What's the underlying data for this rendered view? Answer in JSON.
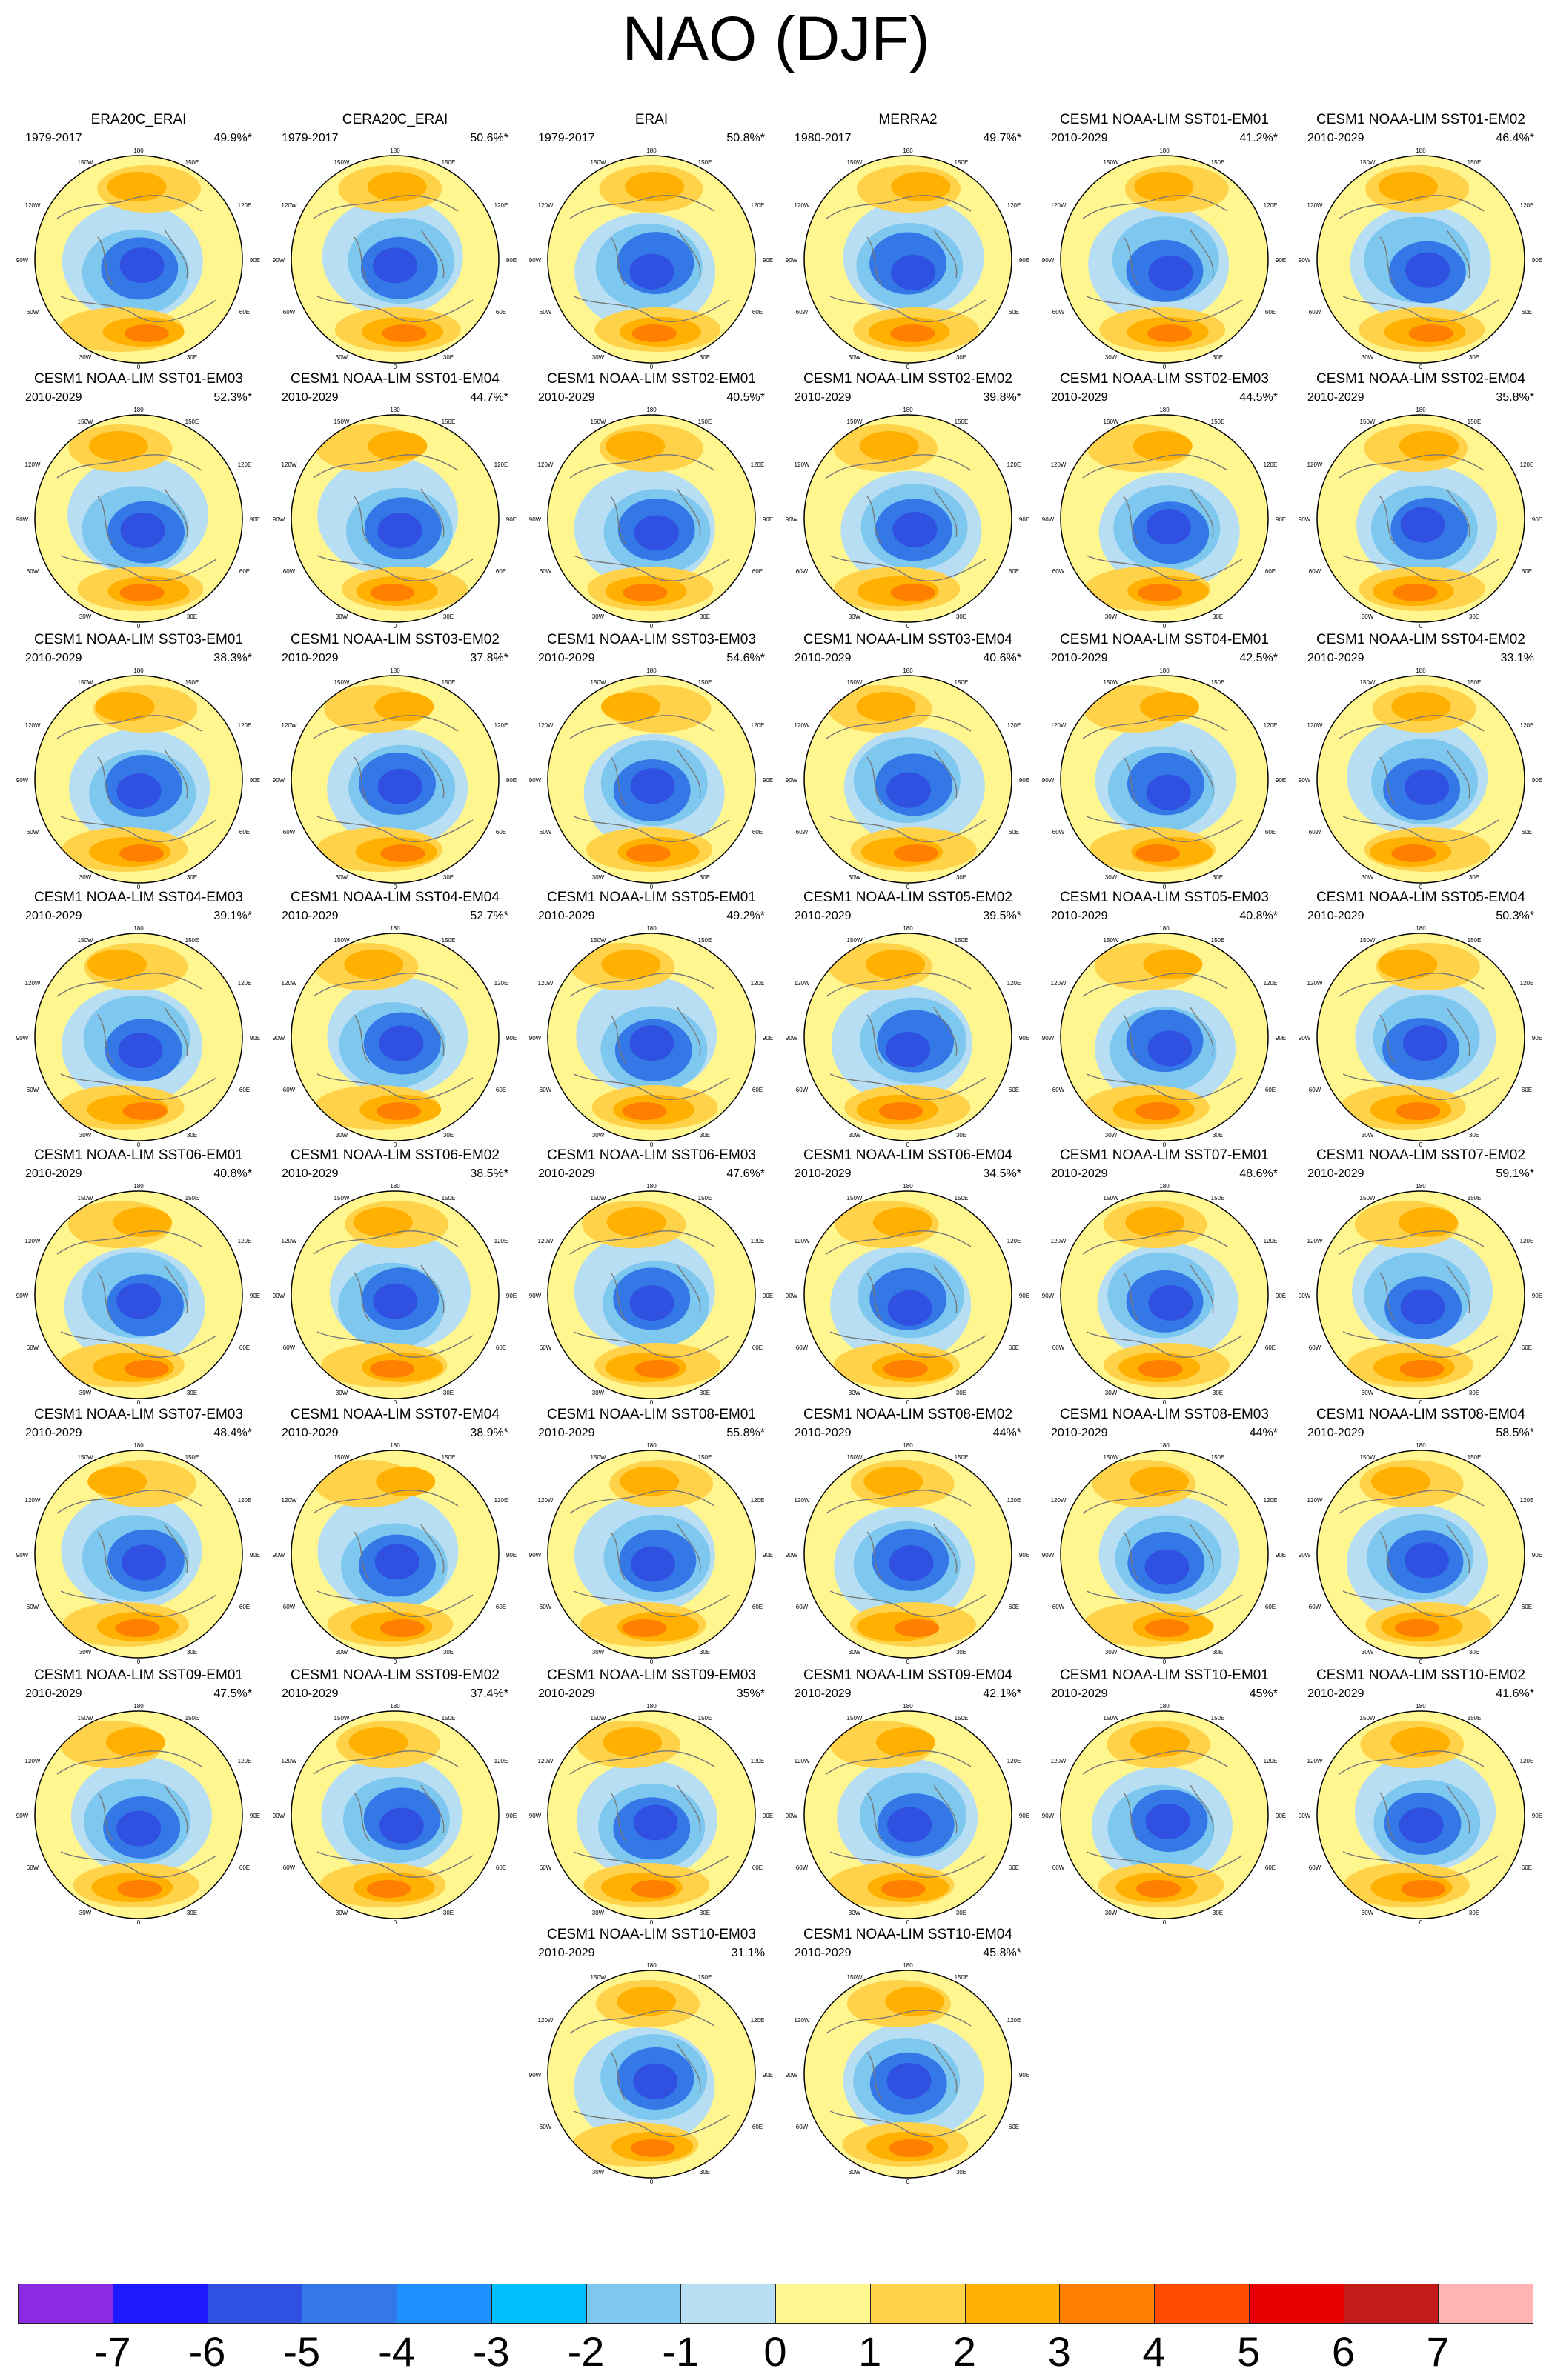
{
  "title": "NAO (DJF)",
  "panels": [
    {
      "title": "ERA20C_ERAI",
      "period": "1979-2017",
      "percent": "49.9%*"
    },
    {
      "title": "CERA20C_ERAI",
      "period": "1979-2017",
      "percent": "50.6%*"
    },
    {
      "title": "ERAI",
      "period": "1979-2017",
      "percent": "50.8%*"
    },
    {
      "title": "MERRA2",
      "period": "1980-2017",
      "percent": "49.7%*"
    },
    {
      "title": "CESM1 NOAA-LIM SST01-EM01",
      "period": "2010-2029",
      "percent": "41.2%*"
    },
    {
      "title": "CESM1 NOAA-LIM SST01-EM02",
      "period": "2010-2029",
      "percent": "46.4%*"
    },
    {
      "title": "CESM1 NOAA-LIM SST01-EM03",
      "period": "2010-2029",
      "percent": "52.3%*"
    },
    {
      "title": "CESM1 NOAA-LIM SST01-EM04",
      "period": "2010-2029",
      "percent": "44.7%*"
    },
    {
      "title": "CESM1 NOAA-LIM SST02-EM01",
      "period": "2010-2029",
      "percent": "40.5%*"
    },
    {
      "title": "CESM1 NOAA-LIM SST02-EM02",
      "period": "2010-2029",
      "percent": "39.8%*"
    },
    {
      "title": "CESM1 NOAA-LIM SST02-EM03",
      "period": "2010-2029",
      "percent": "44.5%*"
    },
    {
      "title": "CESM1 NOAA-LIM SST02-EM04",
      "period": "2010-2029",
      "percent": "35.8%*"
    },
    {
      "title": "CESM1 NOAA-LIM SST03-EM01",
      "period": "2010-2029",
      "percent": "38.3%*"
    },
    {
      "title": "CESM1 NOAA-LIM SST03-EM02",
      "period": "2010-2029",
      "percent": "37.8%*"
    },
    {
      "title": "CESM1 NOAA-LIM SST03-EM03",
      "period": "2010-2029",
      "percent": "54.6%*"
    },
    {
      "title": "CESM1 NOAA-LIM SST03-EM04",
      "period": "2010-2029",
      "percent": "40.6%*"
    },
    {
      "title": "CESM1 NOAA-LIM SST04-EM01",
      "period": "2010-2029",
      "percent": "42.5%*"
    },
    {
      "title": "CESM1 NOAA-LIM SST04-EM02",
      "period": "2010-2029",
      "percent": "33.1%"
    },
    {
      "title": "CESM1 NOAA-LIM SST04-EM03",
      "period": "2010-2029",
      "percent": "39.1%*"
    },
    {
      "title": "CESM1 NOAA-LIM SST04-EM04",
      "period": "2010-2029",
      "percent": "52.7%*"
    },
    {
      "title": "CESM1 NOAA-LIM SST05-EM01",
      "period": "2010-2029",
      "percent": "49.2%*"
    },
    {
      "title": "CESM1 NOAA-LIM SST05-EM02",
      "period": "2010-2029",
      "percent": "39.5%*"
    },
    {
      "title": "CESM1 NOAA-LIM SST05-EM03",
      "period": "2010-2029",
      "percent": "40.8%*"
    },
    {
      "title": "CESM1 NOAA-LIM SST05-EM04",
      "period": "2010-2029",
      "percent": "50.3%*"
    },
    {
      "title": "CESM1 NOAA-LIM SST06-EM01",
      "period": "2010-2029",
      "percent": "40.8%*"
    },
    {
      "title": "CESM1 NOAA-LIM SST06-EM02",
      "period": "2010-2029",
      "percent": "38.5%*"
    },
    {
      "title": "CESM1 NOAA-LIM SST06-EM03",
      "period": "2010-2029",
      "percent": "47.6%*"
    },
    {
      "title": "CESM1 NOAA-LIM SST06-EM04",
      "period": "2010-2029",
      "percent": "34.5%*"
    },
    {
      "title": "CESM1 NOAA-LIM SST07-EM01",
      "period": "2010-2029",
      "percent": "48.6%*"
    },
    {
      "title": "CESM1 NOAA-LIM SST07-EM02",
      "period": "2010-2029",
      "percent": "59.1%*"
    },
    {
      "title": "CESM1 NOAA-LIM SST07-EM03",
      "period": "2010-2029",
      "percent": "48.4%*"
    },
    {
      "title": "CESM1 NOAA-LIM SST07-EM04",
      "period": "2010-2029",
      "percent": "38.9%*"
    },
    {
      "title": "CESM1 NOAA-LIM SST08-EM01",
      "period": "2010-2029",
      "percent": "55.8%*"
    },
    {
      "title": "CESM1 NOAA-LIM SST08-EM02",
      "period": "2010-2029",
      "percent": "44%*"
    },
    {
      "title": "CESM1 NOAA-LIM SST08-EM03",
      "period": "2010-2029",
      "percent": "44%*"
    },
    {
      "title": "CESM1 NOAA-LIM SST08-EM04",
      "period": "2010-2029",
      "percent": "58.5%*"
    },
    {
      "title": "CESM1 NOAA-LIM SST09-EM01",
      "period": "2010-2029",
      "percent": "47.5%*"
    },
    {
      "title": "CESM1 NOAA-LIM SST09-EM02",
      "period": "2010-2029",
      "percent": "37.4%*"
    },
    {
      "title": "CESM1 NOAA-LIM SST09-EM03",
      "period": "2010-2029",
      "percent": "35%*"
    },
    {
      "title": "CESM1 NOAA-LIM SST09-EM04",
      "period": "2010-2029",
      "percent": "42.1%*"
    },
    {
      "title": "CESM1 NOAA-LIM SST10-EM01",
      "period": "2010-2029",
      "percent": "45%*"
    },
    {
      "title": "CESM1 NOAA-LIM SST10-EM02",
      "period": "2010-2029",
      "percent": "41.6%*"
    },
    {
      "title": "CESM1 NOAA-LIM SST10-EM03",
      "period": "2010-2029",
      "percent": "31.1%"
    },
    {
      "title": "CESM1 NOAA-LIM SST10-EM04",
      "period": "2010-2029",
      "percent": "45.8%*"
    }
  ],
  "map_labels": {
    "top": "180",
    "upper_left": "150W",
    "upper_right": "150E",
    "left_high": "120W",
    "right_high": "120E",
    "left": "90W",
    "right": "90E",
    "left_low": "60W",
    "right_low": "60E",
    "lower_left": "30W",
    "lower_right": "30E",
    "bottom": "0"
  },
  "colorbar": {
    "colors": [
      "#8a2be2",
      "#1e1aff",
      "#2f50e0",
      "#3478e8",
      "#1e90ff",
      "#00bfff",
      "#7ec8f0",
      "#b7def2",
      "#fff68f",
      "#ffd24a",
      "#ffb000",
      "#ff8000",
      "#ff4a00",
      "#e80000",
      "#c41a1a",
      "#ffb3b3"
    ],
    "labels": [
      "-7",
      "-6",
      "-5",
      "-4",
      "-3",
      "-2",
      "-1",
      "0",
      "1",
      "2",
      "3",
      "4",
      "5",
      "6",
      "7"
    ]
  }
}
